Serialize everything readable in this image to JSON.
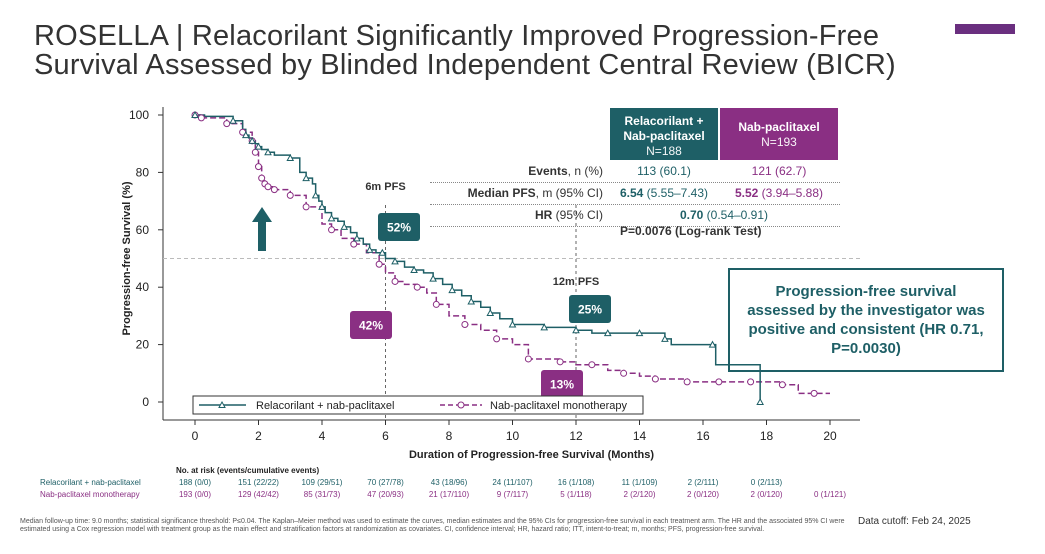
{
  "title": {
    "line1": "ROSELLA | Relacorilant Significantly Improved Progression-Free",
    "line2": "Survival Assessed by Blinded Independent Central Review (BICR)"
  },
  "colors": {
    "relacorilant": "#1e5f66",
    "nab": "#8a2f83",
    "accent": "#6a2f7f"
  },
  "chart_data": {
    "type": "line",
    "ylabel": "Progression-free Survival (%)",
    "xlabel": "Duration of Progression-free Survival (Months)",
    "xlim": [
      0,
      20
    ],
    "ylim": [
      0,
      100
    ],
    "x_ticks": [
      0,
      2,
      4,
      6,
      8,
      10,
      12,
      14,
      16,
      18,
      20
    ],
    "y_ticks": [
      0,
      20,
      40,
      60,
      80,
      100
    ],
    "grid": false,
    "reference_line_y": 50,
    "milestones": [
      {
        "label": "6m PFS",
        "x": 6,
        "rel": "52%",
        "nab": "42%"
      },
      {
        "label": "12m PFS",
        "x": 12,
        "rel": "25%",
        "nab": "13%"
      }
    ],
    "legend_position": "bottom",
    "series": [
      {
        "name": "Relacorilant + nab-paclitaxel",
        "style": "solid",
        "marker": "triangle",
        "x": [
          0,
          0.3,
          1.2,
          1.5,
          1.6,
          1.7,
          1.8,
          1.9,
          2.0,
          2.1,
          2.3,
          2.5,
          3.0,
          3.3,
          3.5,
          3.7,
          3.8,
          3.9,
          4.0,
          4.1,
          4.3,
          4.5,
          4.7,
          4.9,
          5.1,
          5.3,
          5.5,
          5.7,
          5.9,
          6.0,
          6.3,
          6.6,
          6.9,
          7.2,
          7.5,
          7.8,
          8.1,
          8.4,
          8.7,
          9.0,
          9.3,
          9.6,
          10.0,
          10.5,
          11.0,
          11.5,
          12.0,
          12.5,
          13.0,
          13.5,
          14.0,
          14.6,
          14.8,
          15.0,
          16.3,
          16.4,
          17.8
        ],
        "y": [
          100,
          99.5,
          98,
          95,
          93,
          92,
          91,
          90,
          89,
          88,
          87,
          86,
          85,
          80,
          78,
          76,
          72,
          70,
          68,
          66,
          64,
          63,
          61,
          59,
          57,
          55,
          53,
          52,
          52,
          50,
          49,
          47,
          46,
          45,
          43,
          41,
          39,
          37,
          35,
          33,
          31,
          29,
          27,
          27,
          26,
          26,
          25,
          24,
          24,
          24,
          24,
          24,
          22,
          20,
          20,
          13,
          0
        ]
      },
      {
        "name": "Nab-paclitaxel monotherapy",
        "style": "dashed",
        "marker": "circle",
        "x": [
          0,
          0.2,
          1.0,
          1.5,
          1.8,
          1.9,
          2.0,
          2.1,
          2.2,
          2.3,
          2.5,
          3.0,
          3.5,
          4.0,
          4.3,
          4.6,
          5.0,
          5.4,
          5.8,
          6.0,
          6.3,
          6.6,
          7.0,
          7.3,
          7.6,
          8.0,
          8.5,
          9.0,
          9.5,
          10.0,
          10.5,
          11.0,
          11.5,
          12.0,
          12.5,
          13.0,
          13.5,
          14.0,
          14.5,
          15.0,
          15.5,
          16.0,
          16.5,
          17.0,
          17.5,
          18.0,
          18.5,
          19.0,
          19.5,
          20.0
        ],
        "y": [
          100,
          99,
          97,
          94,
          91,
          87,
          82,
          78,
          76,
          75,
          74,
          72,
          68,
          62,
          60,
          57,
          55,
          52,
          48,
          45,
          42,
          41,
          40,
          38,
          34,
          30,
          27,
          25,
          22,
          20,
          15,
          15,
          14,
          13,
          13,
          11,
          10,
          9,
          8,
          8,
          7,
          7,
          7,
          7,
          7,
          7,
          6,
          3,
          3,
          3
        ]
      }
    ]
  },
  "legend": {
    "rel": "Relacorilant + nab-paclitaxel",
    "nab": "Nab-paclitaxel monotherapy"
  },
  "stats": {
    "rel_header_line1": "Relacorilant +",
    "rel_header_line2": "Nab-paclitaxel",
    "rel_n": "N=188",
    "nab_header": "Nab-paclitaxel",
    "nab_n": "N=193",
    "events_label_bold": "Events",
    "events_label_rest": ", n (%)",
    "events_rel": "113 (60.1)",
    "events_nab": "121 (62.7)",
    "median_label_bold": "Median PFS",
    "median_label_rest": ", m (95% CI)",
    "median_rel_bold": "6.54",
    "median_rel_ci": " (5.55–7.43)",
    "median_nab_bold": "5.52",
    "median_nab_ci": " (3.94–5.88)",
    "hr_label_bold": "HR",
    "hr_label_rest": " (95% CI)",
    "hr_bold": "0.70",
    "hr_ci": " (0.54–0.91)",
    "logrank": "P=0.0076 (Log-rank Test)"
  },
  "callout": "Progression-free survival assessed by the investigator was positive and consistent (HR 0.71, P=0.0030)",
  "risk_table": {
    "title": "No. at risk (events/cumulative events)",
    "rel_label": "Relacorilant + nab-paclitaxel",
    "nab_label": "Nab-paclitaxel monotherapy",
    "rel_values": [
      "188 (0/0)",
      "151 (22/22)",
      "109 (29/51)",
      "70 (27/78)",
      "43 (18/96)",
      "24 (11/107)",
      "16 (1/108)",
      "11 (1/109)",
      "2 (2/111)",
      "0 (2/113)"
    ],
    "nab_values": [
      "193 (0/0)",
      "129 (42/42)",
      "85 (31/73)",
      "47 (20/93)",
      "21 (17/110)",
      "9 (7/117)",
      "5 (1/118)",
      "2 (2/120)",
      "2 (0/120)",
      "2 (0/120)",
      "0 (1/121)"
    ]
  },
  "footnote": "Median follow-up time: 9.0 months; statistical significance threshold: P≤0.04. The Kaplan–Meier method was used to estimate the curves, median estimates and the 95% CIs for progression-free survival in each treatment arm. The HR and the associated 95% CI were estimated using a Cox regression model with treatment group as the main effect and stratification factors at randomization as covariates. CI, confidence interval; HR, hazard ratio; ITT, intent-to-treat; m, months; PFS, progression-free survival.",
  "data_cutoff": "Data cutoff: Feb 24, 2025"
}
